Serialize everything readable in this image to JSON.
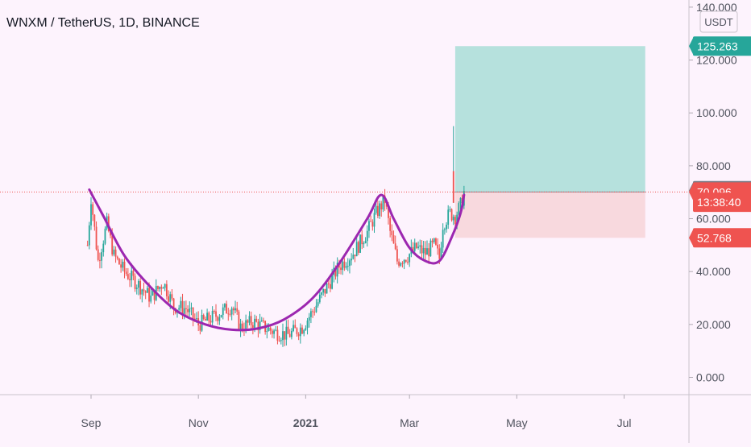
{
  "title": "WNXM / TetherUS, 1D, BINANCE",
  "currency_label": "USDT",
  "colors": {
    "background": "#fdf3fd",
    "up": "#26a69a",
    "down": "#ef5350",
    "pattern": "#9c27b0",
    "target_zone": "#b2dfdb",
    "stop_zone": "#f8d7dc",
    "price_line": "#ef5350",
    "grey_tag": "#787b86"
  },
  "chart_data": {
    "type": "candlestick",
    "y_ticks": [
      "0.000",
      "20.000",
      "40.000",
      "60.000",
      "80.000",
      "100.000",
      "120.000",
      "140.000"
    ],
    "x_ticks": [
      "Sep",
      "Nov",
      "2021",
      "Mar",
      "May",
      "Jul"
    ],
    "ylim": [
      -8,
      145
    ],
    "price_tags": [
      {
        "label": "125.263",
        "value": 125.263,
        "color": "#26a69a"
      },
      {
        "label": "70.596",
        "value": 70.596,
        "color": "#787b86"
      },
      {
        "label": "70.096",
        "value": 70.096,
        "color": "#ef5350"
      },
      {
        "label": "13:38:40",
        "value": 66.2,
        "color": "#ef5350"
      },
      {
        "label": "52.768",
        "value": 52.768,
        "color": "#ef5350"
      }
    ],
    "current_price": 70.096,
    "position": {
      "entry": 70.096,
      "target": 125.263,
      "stop": 52.768,
      "start_date": "2021-03-27",
      "end_date": "2021-07-13"
    },
    "cup_handle": [
      {
        "date": "2020-08-31",
        "price": 71
      },
      {
        "date": "2020-09-08",
        "price": 61
      },
      {
        "date": "2020-09-20",
        "price": 46
      },
      {
        "date": "2020-10-05",
        "price": 34
      },
      {
        "date": "2020-10-20",
        "price": 25
      },
      {
        "date": "2020-11-05",
        "price": 20
      },
      {
        "date": "2020-11-20",
        "price": 18
      },
      {
        "date": "2020-12-05",
        "price": 18.5
      },
      {
        "date": "2020-12-20",
        "price": 22
      },
      {
        "date": "2021-01-05",
        "price": 30
      },
      {
        "date": "2021-01-20",
        "price": 43
      },
      {
        "date": "2021-02-05",
        "price": 60
      },
      {
        "date": "2021-02-13",
        "price": 69
      },
      {
        "date": "2021-02-20",
        "price": 60
      },
      {
        "date": "2021-03-01",
        "price": 49
      },
      {
        "date": "2021-03-10",
        "price": 44
      },
      {
        "date": "2021-03-18",
        "price": 44
      },
      {
        "date": "2021-03-25",
        "price": 53
      },
      {
        "date": "2021-03-30",
        "price": 62
      },
      {
        "date": "2021-04-01",
        "price": 69
      }
    ],
    "trend_points": [
      {
        "date": "2020-08-30",
        "price": 50
      },
      {
        "date": "2020-09-01",
        "price": 68
      },
      {
        "date": "2020-09-05",
        "price": 44
      },
      {
        "date": "2020-09-10",
        "price": 58
      },
      {
        "date": "2020-09-14",
        "price": 46
      },
      {
        "date": "2020-09-20",
        "price": 40
      },
      {
        "date": "2020-09-28",
        "price": 35
      },
      {
        "date": "2020-10-05",
        "price": 30
      },
      {
        "date": "2020-10-12",
        "price": 36
      },
      {
        "date": "2020-10-18",
        "price": 27
      },
      {
        "date": "2020-10-25",
        "price": 26
      },
      {
        "date": "2020-11-01",
        "price": 20
      },
      {
        "date": "2020-11-10",
        "price": 23
      },
      {
        "date": "2020-11-20",
        "price": 27
      },
      {
        "date": "2020-11-25",
        "price": 19
      },
      {
        "date": "2020-12-02",
        "price": 21
      },
      {
        "date": "2020-12-08",
        "price": 19
      },
      {
        "date": "2020-12-15",
        "price": 17
      },
      {
        "date": "2020-12-22",
        "price": 16
      },
      {
        "date": "2020-12-30",
        "price": 19
      },
      {
        "date": "2021-01-05",
        "price": 25
      },
      {
        "date": "2021-01-12",
        "price": 33
      },
      {
        "date": "2021-01-20",
        "price": 42
      },
      {
        "date": "2021-01-28",
        "price": 47
      },
      {
        "date": "2021-02-05",
        "price": 55
      },
      {
        "date": "2021-02-10",
        "price": 62
      },
      {
        "date": "2021-02-15",
        "price": 67
      },
      {
        "date": "2021-02-18",
        "price": 55
      },
      {
        "date": "2021-02-22",
        "price": 44
      },
      {
        "date": "2021-02-28",
        "price": 46
      },
      {
        "date": "2021-03-05",
        "price": 49
      },
      {
        "date": "2021-03-10",
        "price": 47
      },
      {
        "date": "2021-03-15",
        "price": 50
      },
      {
        "date": "2021-03-18",
        "price": 45
      },
      {
        "date": "2021-03-20",
        "price": 58
      },
      {
        "date": "2021-03-24",
        "price": 62
      },
      {
        "date": "2021-03-27",
        "price": 61
      },
      {
        "date": "2021-03-30",
        "price": 65
      },
      {
        "date": "2021-04-01",
        "price": 70
      }
    ]
  }
}
